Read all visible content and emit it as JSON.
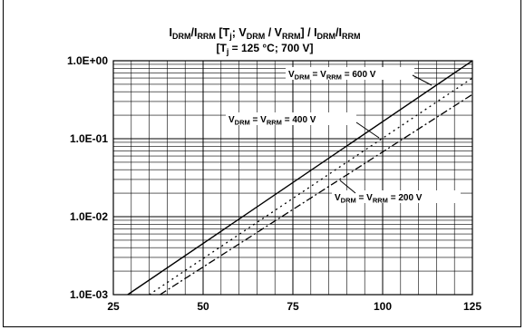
{
  "chart_data": {
    "type": "line",
    "title": {
      "line1": "I_DRM/I_RRM [T_j; V_DRM / V_RRM] / I_DRM/I_RRM",
      "line2": "[T_j = 125 °C; 700 V]"
    },
    "xlabel": "",
    "ylabel": "",
    "x_ticks": [
      "25",
      "50",
      "75",
      "100",
      "125"
    ],
    "y_ticks": [
      "1.0E-03",
      "1.0E-02",
      "1.0E-01",
      "1.0E+00"
    ],
    "xlim": [
      25,
      125
    ],
    "ylim": [
      0.001,
      1
    ],
    "y_scale": "log",
    "grid": true,
    "series": [
      {
        "name": "V_DRM = V_RRM = 600 V",
        "style": "solid",
        "x": [
          29,
          125
        ],
        "y": [
          0.001,
          1.0
        ]
      },
      {
        "name": "V_DRM = V_RRM = 400 V",
        "style": "dotted",
        "x": [
          35,
          125
        ],
        "y": [
          0.001,
          0.6
        ]
      },
      {
        "name": "V_DRM = V_RRM = 200 V",
        "style": "dashdot",
        "x": [
          38,
          125
        ],
        "y": [
          0.001,
          0.37
        ]
      }
    ],
    "annotations": [
      {
        "text": "V_DRM = V_RRM = 600 V",
        "series": 0
      },
      {
        "text": "V_DRM = V_RRM = 400 V",
        "series": 1
      },
      {
        "text": "V_DRM = V_RRM = 200 V",
        "series": 2
      }
    ]
  },
  "colors": {
    "line": "#000000",
    "grid": "#000000",
    "background": "#ffffff"
  }
}
